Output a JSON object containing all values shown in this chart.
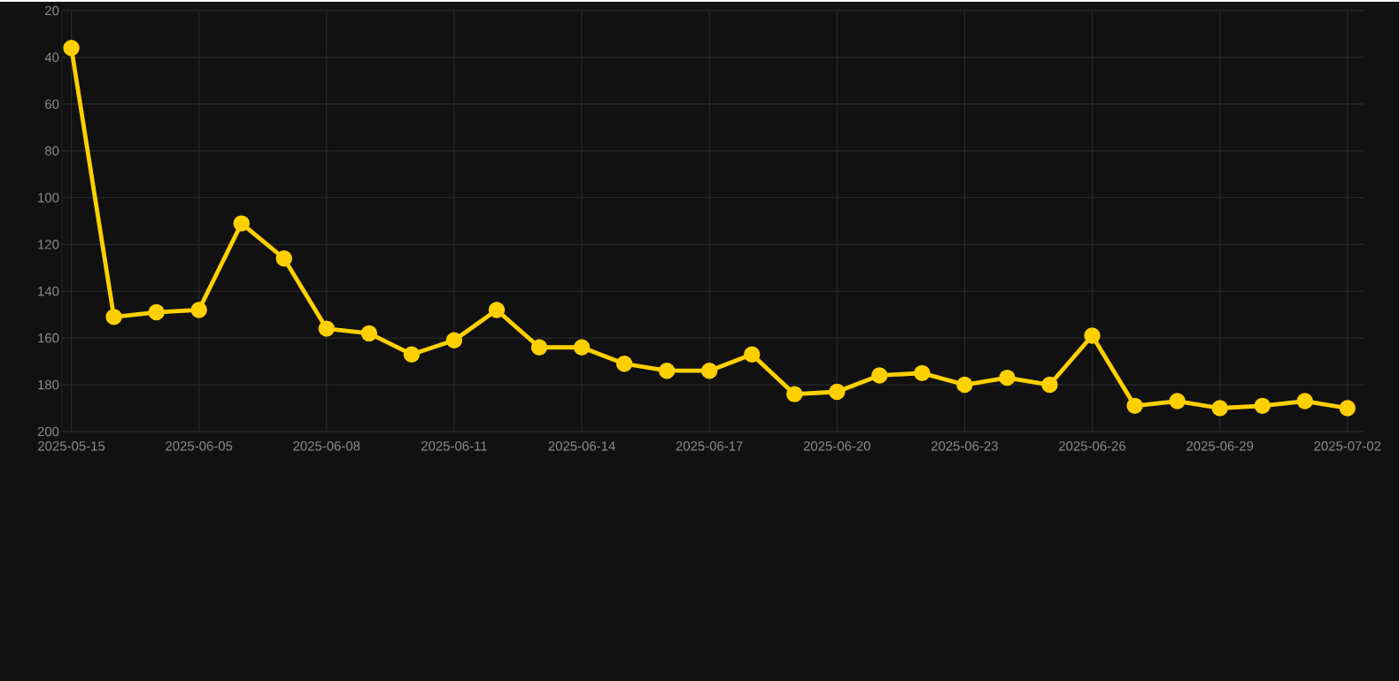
{
  "chart_data": {
    "type": "line",
    "categories": [
      "2025-05-15",
      null,
      null,
      "2025-06-05",
      null,
      null,
      "2025-06-08",
      null,
      null,
      "2025-06-11",
      null,
      null,
      "2025-06-14",
      null,
      null,
      "2025-06-17",
      null,
      null,
      "2025-06-20",
      null,
      null,
      "2025-06-23",
      null,
      null,
      "2025-06-26",
      null,
      null,
      "2025-06-29",
      null,
      null,
      "2025-07-02"
    ],
    "series": [
      {
        "color": "#ffd000",
        "values": [
          36,
          151,
          149,
          148,
          111,
          126,
          156,
          158,
          167,
          161,
          148,
          164,
          164,
          171,
          174,
          174,
          167,
          184,
          183,
          176,
          175,
          180,
          177,
          180,
          159,
          189,
          187,
          190,
          189,
          187,
          190
        ]
      }
    ],
    "ylim": [
      200,
      20
    ],
    "yticks": [
      20,
      40,
      60,
      80,
      100,
      120,
      140,
      160,
      180,
      200
    ],
    "grid": true,
    "marker": "circle",
    "line_style": "solid"
  }
}
